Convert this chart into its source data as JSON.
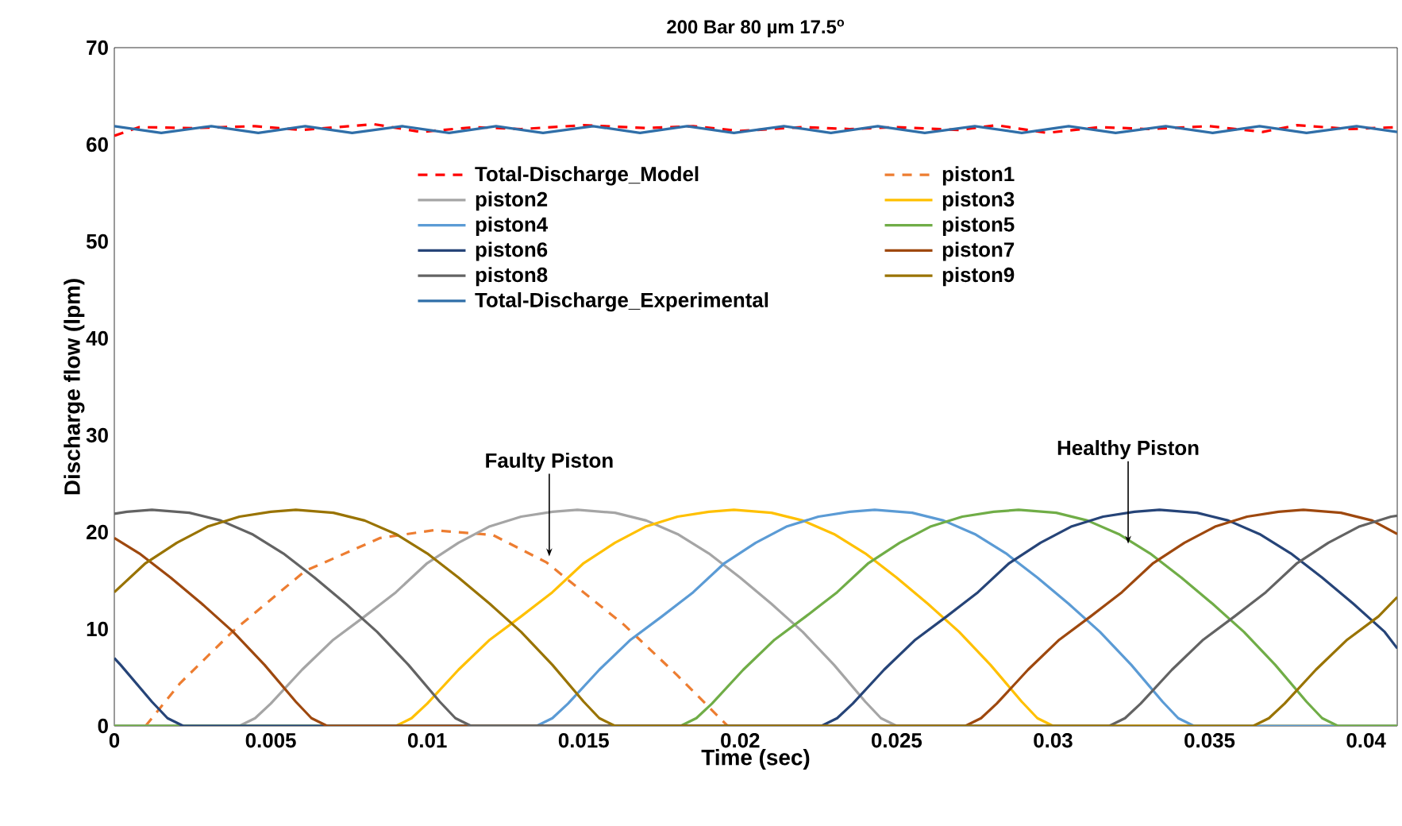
{
  "chart_data": {
    "type": "line",
    "title": "200 Bar 80 µm 17.5$^{o}$",
    "xlabel": "Time (sec)",
    "ylabel": "Discharge flow (lpm)",
    "xlim": [
      0,
      0.041
    ],
    "ylim": [
      0,
      70
    ],
    "xticks": [
      0,
      0.005,
      0.01,
      0.015,
      0.02,
      0.025,
      0.03,
      0.035,
      0.04
    ],
    "yticks": [
      0,
      10,
      20,
      30,
      40,
      50,
      60,
      70
    ],
    "grid": false,
    "legend": "top",
    "marker": "none",
    "annotations": [
      {
        "text": "Faulty Piston",
        "x": 0.0139,
        "y": 17.5
      },
      {
        "text": "Healthy Piston",
        "x": 0.0324,
        "y": 18.8
      }
    ],
    "series": [
      {
        "name": "Total-Discharge_Model",
        "color": "#ff0000",
        "line_style": "dashed",
        "x": [
          0,
          0.0008,
          0.0025,
          0.0045,
          0.006,
          0.0083,
          0.0098,
          0.0115,
          0.013,
          0.015,
          0.017,
          0.0185,
          0.02,
          0.022,
          0.0235,
          0.025,
          0.027,
          0.0282,
          0.0298,
          0.0315,
          0.033,
          0.035,
          0.0367,
          0.0378,
          0.0395,
          0.041
        ],
        "values": [
          60.9,
          61.8,
          61.7,
          61.9,
          61.5,
          62.1,
          61.3,
          61.8,
          61.6,
          62.0,
          61.7,
          61.9,
          61.4,
          61.8,
          61.6,
          61.8,
          61.5,
          62.0,
          61.2,
          61.8,
          61.6,
          61.9,
          61.3,
          62.0,
          61.6,
          61.8
        ]
      },
      {
        "name": "piston1",
        "color": "#ed7d31",
        "line_style": "dashed",
        "x": [
          0.001,
          0.0021,
          0.0038,
          0.0061,
          0.0085,
          0.0102,
          0.0121,
          0.0138,
          0.0163,
          0.018,
          0.0196
        ],
        "values": [
          0,
          4.4,
          9.8,
          16,
          19.4,
          20.2,
          19.7,
          16.9,
          10.4,
          5.2,
          0
        ]
      },
      {
        "name": "piston2",
        "color": "#a5a5a5",
        "line_style": "solid",
        "x": [
          0,
          0.004,
          0.0045,
          0.005,
          0.006,
          0.007,
          0.008,
          0.009,
          0.01,
          0.011,
          0.012,
          0.013,
          0.014,
          0.0148,
          0.016,
          0.017,
          0.018,
          0.019,
          0.02,
          0.021,
          0.022,
          0.023,
          0.024,
          0.0245,
          0.025,
          0.041
        ],
        "values": [
          0,
          0,
          0.8,
          2.3,
          5.8,
          8.9,
          11.3,
          13.8,
          16.8,
          18.9,
          20.6,
          21.6,
          22.1,
          22.3,
          22.0,
          21.2,
          19.8,
          17.8,
          15.3,
          12.6,
          9.7,
          6.3,
          2.5,
          0.8,
          0,
          0
        ]
      },
      {
        "name": "piston3",
        "color": "#ffc000",
        "line_style": "solid",
        "x": [
          0,
          0.009,
          0.0095,
          0.01,
          0.011,
          0.012,
          0.013,
          0.014,
          0.015,
          0.016,
          0.017,
          0.018,
          0.019,
          0.0198,
          0.021,
          0.022,
          0.023,
          0.024,
          0.025,
          0.026,
          0.027,
          0.028,
          0.029,
          0.0295,
          0.03,
          0.041
        ],
        "values": [
          0,
          0,
          0.8,
          2.3,
          5.8,
          8.9,
          11.3,
          13.8,
          16.8,
          18.9,
          20.6,
          21.6,
          22.1,
          22.3,
          22.0,
          21.2,
          19.8,
          17.8,
          15.3,
          12.6,
          9.7,
          6.3,
          2.5,
          0.8,
          0,
          0
        ]
      },
      {
        "name": "piston4",
        "color": "#5b9bd5",
        "line_style": "solid",
        "x": [
          0,
          0.0135,
          0.014,
          0.0145,
          0.0155,
          0.0165,
          0.0175,
          0.0185,
          0.0195,
          0.0205,
          0.0215,
          0.0225,
          0.0235,
          0.0243,
          0.0255,
          0.0265,
          0.0275,
          0.0285,
          0.0295,
          0.0305,
          0.0315,
          0.0325,
          0.0335,
          0.034,
          0.0345,
          0.041
        ],
        "values": [
          0,
          0,
          0.8,
          2.3,
          5.8,
          8.9,
          11.3,
          13.8,
          16.8,
          18.9,
          20.6,
          21.6,
          22.1,
          22.3,
          22.0,
          21.2,
          19.8,
          17.8,
          15.3,
          12.6,
          9.7,
          6.3,
          2.5,
          0.8,
          0,
          0
        ]
      },
      {
        "name": "piston5",
        "color": "#70ad47",
        "line_style": "solid",
        "x": [
          0,
          0.0181,
          0.0186,
          0.0191,
          0.0201,
          0.0211,
          0.0221,
          0.0231,
          0.0241,
          0.0251,
          0.0261,
          0.0271,
          0.0281,
          0.0289,
          0.0301,
          0.0311,
          0.0321,
          0.0331,
          0.0341,
          0.0351,
          0.0361,
          0.0371,
          0.0381,
          0.0386,
          0.0391,
          0.041
        ],
        "values": [
          0,
          0,
          0.8,
          2.3,
          5.8,
          8.9,
          11.3,
          13.8,
          16.8,
          18.9,
          20.6,
          21.6,
          22.1,
          22.3,
          22.0,
          21.2,
          19.8,
          17.8,
          15.3,
          12.6,
          9.7,
          6.3,
          2.5,
          0.8,
          0,
          0
        ]
      },
      {
        "name": "piston6",
        "color": "#264478",
        "line_style": "solid",
        "x": [
          0,
          0.0002,
          0.0012,
          0.0017,
          0.0022,
          0.0226,
          0.0231,
          0.0236,
          0.0246,
          0.0256,
          0.0266,
          0.0276,
          0.0286,
          0.0296,
          0.0306,
          0.0316,
          0.0326,
          0.0334,
          0.0346,
          0.0356,
          0.0366,
          0.0376,
          0.0386,
          0.0396,
          0.0406,
          0.041
        ],
        "values": [
          7.0,
          6.3,
          2.5,
          0.8,
          0,
          0,
          0.8,
          2.3,
          5.8,
          8.9,
          11.3,
          13.8,
          16.8,
          18.9,
          20.6,
          21.6,
          22.1,
          22.3,
          22.0,
          21.2,
          19.8,
          17.8,
          15.3,
          12.6,
          9.7,
          8.0
        ]
      },
      {
        "name": "piston7",
        "color": "#9e480e",
        "line_style": "solid",
        "x": [
          0,
          0.0008,
          0.0018,
          0.0028,
          0.0038,
          0.0048,
          0.0058,
          0.0063,
          0.0068,
          0.0272,
          0.0277,
          0.0282,
          0.0292,
          0.0302,
          0.0312,
          0.0322,
          0.0332,
          0.0342,
          0.0352,
          0.0362,
          0.0372,
          0.038,
          0.0392,
          0.0402,
          0.041
        ],
        "values": [
          19.4,
          17.8,
          15.3,
          12.6,
          9.7,
          6.3,
          2.5,
          0.8,
          0,
          0,
          0.8,
          2.3,
          5.8,
          8.9,
          11.3,
          13.8,
          16.8,
          18.9,
          20.6,
          21.6,
          22.1,
          22.3,
          22.0,
          21.2,
          19.8
        ]
      },
      {
        "name": "piston8",
        "color": "#636363",
        "line_style": "solid",
        "x": [
          0,
          0.0004,
          0.0012,
          0.0024,
          0.0034,
          0.0044,
          0.0054,
          0.0064,
          0.0074,
          0.0084,
          0.0094,
          0.0104,
          0.0109,
          0.0114,
          0.0318,
          0.0323,
          0.0328,
          0.0338,
          0.0348,
          0.0358,
          0.0368,
          0.0378,
          0.0388,
          0.0398,
          0.0408,
          0.041
        ],
        "values": [
          21.9,
          22.1,
          22.3,
          22.0,
          21.2,
          19.8,
          17.8,
          15.3,
          12.6,
          9.7,
          6.3,
          2.5,
          0.8,
          0,
          0,
          0.8,
          2.3,
          5.8,
          8.9,
          11.3,
          13.8,
          16.8,
          18.9,
          20.6,
          21.6,
          21.7
        ]
      },
      {
        "name": "piston9",
        "color": "#997300",
        "line_style": "solid",
        "x": [
          0,
          0.001,
          0.002,
          0.003,
          0.004,
          0.005,
          0.0058,
          0.007,
          0.008,
          0.009,
          0.01,
          0.011,
          0.012,
          0.013,
          0.014,
          0.015,
          0.0155,
          0.016,
          0.0364,
          0.0369,
          0.0374,
          0.0384,
          0.0394,
          0.0404,
          0.041
        ],
        "values": [
          13.8,
          16.8,
          18.9,
          20.6,
          21.6,
          22.1,
          22.3,
          22.0,
          21.2,
          19.8,
          17.8,
          15.3,
          12.6,
          9.7,
          6.3,
          2.5,
          0.8,
          0,
          0,
          0.8,
          2.3,
          5.8,
          8.9,
          11.3,
          13.3
        ]
      },
      {
        "name": "Total-Discharge_Experimental",
        "color": "#2f6ea8",
        "line_style": "solid",
        "x": [
          0,
          0.0015,
          0.0031,
          0.0046,
          0.0061,
          0.0076,
          0.0092,
          0.0107,
          0.0122,
          0.0137,
          0.0153,
          0.0168,
          0.0183,
          0.0198,
          0.0214,
          0.0229,
          0.0244,
          0.0259,
          0.0275,
          0.029,
          0.0305,
          0.032,
          0.0336,
          0.0351,
          0.0366,
          0.0381,
          0.0397,
          0.041
        ],
        "values": [
          61.9,
          61.2,
          61.9,
          61.2,
          61.9,
          61.2,
          61.9,
          61.2,
          61.9,
          61.2,
          61.9,
          61.2,
          61.9,
          61.2,
          61.9,
          61.2,
          61.9,
          61.2,
          61.9,
          61.2,
          61.9,
          61.2,
          61.9,
          61.2,
          61.9,
          61.2,
          61.9,
          61.3
        ]
      }
    ]
  }
}
